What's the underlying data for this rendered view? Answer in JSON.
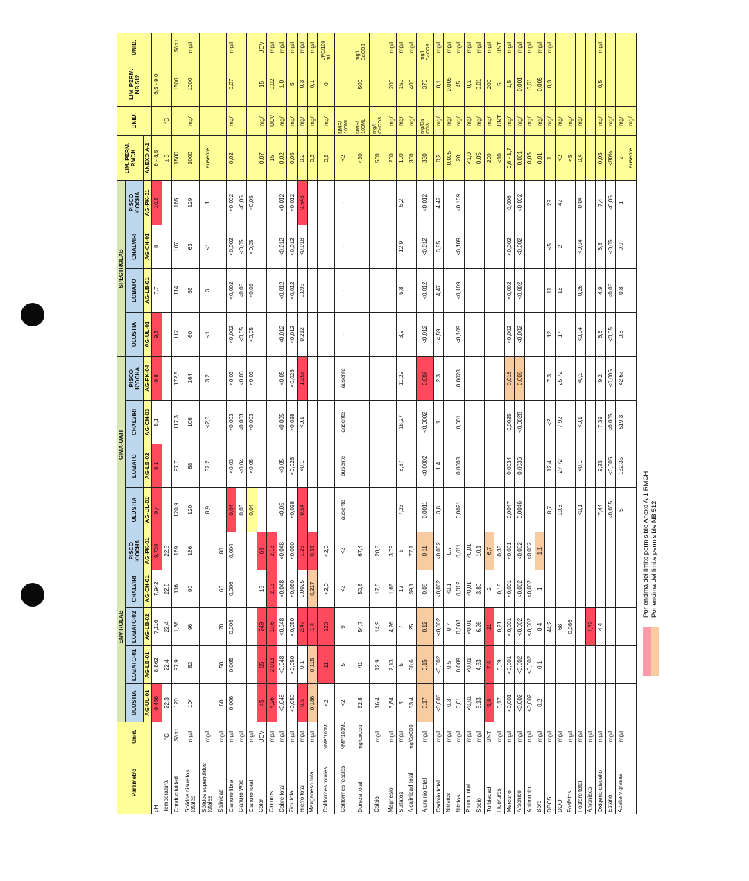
{
  "colors": {
    "red": "#ff4a5e",
    "orange": "#f8cba0",
    "yellow": "#ffff99",
    "green": "#d8e8b0",
    "blue": "#bdd7ee",
    "pink": "#ff9aa6"
  },
  "header": {
    "parametro": "Parámetro",
    "unid": "Unid.",
    "envirolab": "ENVIROLAB",
    "cima": "CIMA-UATF",
    "spectrolab": "SPECTROLAB",
    "lim_rmch": "LIM. PERM. RMCH",
    "unid2": "UNID.",
    "lim_nb": "LIM. PERM. NB 512",
    "unid3": "UNID.",
    "envirolab_sites": [
      "ULUSTIA",
      "LOBATO-01",
      "LOBATO-02",
      "CHALVIRI",
      "PISCO K'OCHA"
    ],
    "cima_sites": [
      "ULUSTIA",
      "LOBATO",
      "CHALVIRI",
      "PISCO K'OCHA"
    ],
    "spectrolab_sites": [
      "ULUSTIA",
      "LOBATO",
      "CHALVIRI",
      "PISCO K'OCHA"
    ],
    "codes": [
      "AG-UL-01",
      "AG-LB-01",
      "AG-LB-02",
      "AG-CH-01",
      "AG-PK-01",
      "AG-UL-01",
      "AG-LB-02",
      "AG-CH-03",
      "AG-PK-04",
      "AG-UL-01",
      "AG-LB-01",
      "AG-CH-01",
      "AG-PK-01",
      "ANEXO A-1"
    ]
  },
  "rows": [
    {
      "c": [
        "pH",
        "",
        "9,456",
        "8,862",
        "7,116",
        "7,942",
        "9,739",
        "9,4",
        "9,1",
        "8,1",
        "9,8",
        "9,3",
        "7,7",
        "8",
        "10,8",
        "6 - 8,5",
        "",
        "6,5 - 9,0",
        ""
      ],
      "hl": {
        "2": "r",
        "6": "r",
        "7": "r",
        "8": "r",
        "10": "r",
        "11": "r",
        "14": "r"
      }
    },
    {
      "c": [
        "Temperatura",
        "°C",
        "22,3",
        "22,4",
        "22,4",
        "22,6",
        "22,8",
        "",
        "",
        "",
        "",
        "",
        "",
        "",
        "",
        "± 3",
        "°C",
        "",
        ""
      ]
    },
    {
      "c": [
        "Conductividad",
        "μS/cm",
        "120",
        "97,9",
        "1,38",
        "116",
        "169",
        "120,9",
        "97,7",
        "117,3",
        "172,5",
        "112",
        "114",
        "107",
        "165",
        "1500",
        "",
        "1500",
        "μS/cm"
      ]
    },
    {
      "c": [
        "Solidos disueltos totales",
        "mg/l",
        "104",
        "82",
        "96",
        "90",
        "166",
        "120",
        "88",
        "106",
        "164",
        "60",
        "65",
        "63",
        "129",
        "1000",
        "mg/l",
        "1000",
        "mg/l"
      ]
    },
    {
      "c": [
        "Sólidos supendidos totales",
        "mg/l",
        "",
        "",
        "",
        "",
        "",
        "8,9",
        "32,2",
        "<2,0",
        "3,2",
        "<1",
        "3",
        "<1",
        "1",
        "ausente",
        "",
        "",
        ""
      ]
    },
    {
      "c": [
        "Salinidad",
        "mg/l",
        "60",
        "50",
        "70",
        "60",
        "80",
        "",
        "",
        "",
        "",
        "",
        "",
        "",
        "",
        "",
        "",
        "",
        ""
      ]
    },
    {
      "c": [
        "Cianuro libre",
        "mg/l",
        "0,006",
        "0,005",
        "0,006",
        "0,006",
        "0,004",
        "0,04",
        "<0,03",
        "<0,003",
        "<0,03",
        "<0,002",
        "<0,002",
        "<0,002",
        "<0,002",
        "0,02",
        "mg/l",
        "0,07",
        "mg/l"
      ],
      "hl": {
        "7": "r"
      }
    },
    {
      "c": [
        "Cianuro Wad",
        "mg/l",
        "",
        "",
        "",
        "",
        "",
        "0,03",
        "<0,04",
        "<0,003",
        "<0,03",
        "<0,05",
        "<0,05",
        "<0,05",
        "<0,05",
        "",
        "",
        "",
        ""
      ]
    },
    {
      "c": [
        "Cianuro total",
        "mg/l",
        "",
        "",
        "",
        "",
        "",
        "0,04",
        "<0,05",
        "<0,003",
        "<0,03",
        "<0,05",
        "<0,05",
        "<0,05",
        "<0,05",
        "",
        "",
        "",
        ""
      ],
      "hl": {
        "7": "y"
      }
    },
    {
      "c": [
        "Color",
        "UCV",
        "45",
        "65",
        "249",
        "15",
        "69",
        "",
        "",
        "",
        "",
        "",
        "",
        "",
        "",
        "0,07",
        "mg/l",
        "15",
        "UCV"
      ],
      "hl": {
        "2": "r",
        "3": "r",
        "4": "r",
        "6": "r"
      }
    },
    {
      "c": [
        "Cloruros",
        "mg/l",
        "4,26",
        "2,013",
        "10,6",
        "2,13",
        "2,13",
        "",
        "",
        "",
        "",
        "",
        "",
        "",
        "",
        "15",
        "UCV",
        "0,02",
        "mg/l"
      ],
      "hl": {
        "2": "r",
        "3": "r",
        "4": "r",
        "5": "r",
        "6": "r"
      }
    },
    {
      "c": [
        "Cobre total",
        "mg/l",
        "<0,048",
        "<0,048",
        "<0,048",
        "<0,048",
        "<0,048",
        "<0,05",
        "<0,05",
        "<0,005",
        "<0,05",
        "<0,012",
        "<0,012",
        "<0,012",
        "<0,012",
        "0,02",
        "mg/l",
        "1,0",
        "mg/l"
      ]
    },
    {
      "c": [
        "Zinc total",
        "mg/l",
        "<0,050",
        "<0,050",
        "<0,050",
        "<0,050",
        "<0,050",
        "<0,028",
        "<0,028",
        "<0,028",
        "<0,028",
        "<0,012",
        "<0,012",
        "<0,012",
        "<0,012",
        "0,05",
        "mg/l",
        "5",
        "mg/l"
      ]
    },
    {
      "c": [
        "Hierro total",
        "mg/l",
        "0,5",
        "0,1",
        "2,47",
        "0,0025",
        "1,26",
        "0,54",
        "<0,1",
        "<0,1",
        "1,358",
        "0,212",
        "0,095",
        "<0,018",
        "0,643",
        "0,2",
        "mg/l",
        "0,3",
        "mg/l"
      ],
      "hl": {
        "2": "r",
        "4": "r",
        "6": "r",
        "7": "r",
        "10": "r",
        "14": "r"
      }
    },
    {
      "c": [
        "Manganeso total",
        "mg/l",
        "0,186",
        "0,115",
        "1,4",
        "0,217",
        "0,35",
        "",
        "",
        "",
        "",
        "",
        "",
        "",
        "",
        "0,3",
        "mg/l",
        "0,1",
        "mg/l"
      ],
      "hl": {
        "2": "o",
        "3": "o",
        "4": "r",
        "5": "o",
        "6": "r"
      }
    },
    {
      "c": [
        "Coliformes totales",
        "NMP/100ML",
        "<2",
        "11",
        "220",
        "<2,0",
        "<2,0",
        "",
        "",
        "",
        "",
        "",
        "",
        "",
        "",
        "0,5",
        "mg/l",
        "0",
        "UFC/100 ml"
      ],
      "hl": {
        "3": "r",
        "4": "r"
      }
    },
    {
      "c": [
        "Coliformes fecales",
        "NMP/100ML",
        "<2",
        "5",
        "9",
        "<2",
        "<2",
        "ausente",
        "ausente",
        "ausente",
        "ausente",
        "-",
        "-",
        "-",
        "-",
        "<2",
        "NMP/ 100ML",
        "",
        ""
      ]
    },
    {
      "c": [
        "Dureza total",
        "mg/CaCO3",
        "52,8",
        "41",
        "54,7",
        "50,8",
        "67,4",
        "",
        "",
        "",
        "",
        "",
        "",
        "",
        "",
        "<50",
        "NMP/ 100ML",
        "500",
        "mg/l CaCO3"
      ]
    },
    {
      "c": [
        "Calcio",
        "mg/l",
        "16,4",
        "12,9",
        "14,9",
        "17,6",
        "20,8",
        "",
        "",
        "",
        "",
        "",
        "",
        "",
        "",
        "500",
        "mg/l CaCO3",
        "",
        ""
      ]
    },
    {
      "c": [
        "Magnesio",
        "mg/l",
        "3,84",
        "2,13",
        "4,26",
        "1,65",
        "3,79",
        "",
        "",
        "",
        "",
        "",
        "",
        "",
        "",
        "200",
        "mg/l",
        "200",
        "mg/l"
      ]
    },
    {
      "c": [
        "Sulfatos",
        "mg/l",
        "4",
        "5",
        "7",
        "12",
        "5",
        "7,23",
        "8,87",
        "18,27",
        "11,29",
        "3,9",
        "5,8",
        "12,9",
        "5,2",
        "100",
        "mg/l",
        "150",
        "mg/l"
      ]
    },
    {
      "c": [
        "Alcalinidad total",
        "mg/CaCO3",
        "53,4",
        "38,6",
        "25",
        "39,1",
        "77,1",
        "",
        "",
        "",
        "",
        "",
        "",
        "",
        "",
        "300",
        "mg/l",
        "400",
        "mg/l"
      ]
    },
    {
      "c": [
        "Aluminio total",
        "mg/l",
        "0,17",
        "0,15",
        "0,12",
        "0,08",
        "0,11",
        "0,0011",
        "<0,0002",
        "<0,0002",
        "0,007",
        "<0,012",
        "<0,012",
        "<0,012",
        "<0,012",
        "350",
        "mg/Ca CO3",
        "370",
        "mg/l CaCO3"
      ],
      "hl": {
        "2": "o",
        "3": "o",
        "4": "o",
        "6": "o",
        "10": "r"
      }
    },
    {
      "c": [
        "Cadmio total",
        "mg/l",
        "<0,003",
        "<0,002",
        "<0,002",
        "<0,002",
        "<0,002",
        "3,8",
        "1,4",
        "1",
        "2,3",
        "4,59",
        "4,47",
        "3,85",
        "4,47",
        "0,2",
        "mg/l",
        "0,1",
        "mg/l"
      ]
    },
    {
      "c": [
        "Nitratos",
        "mg/l",
        "0,3",
        "0,5",
        "0,7",
        "<0,1",
        "0,7",
        "",
        "",
        "",
        "",
        "",
        "",
        "",
        "",
        "0,005",
        "mg/l",
        "0,005",
        "mg/l"
      ]
    },
    {
      "c": [
        "Nitritos",
        "mg/l",
        "0,01",
        "0,009",
        "0,008",
        "0,012",
        "0,011",
        "0,0021",
        "0,0008",
        "0,001",
        "0,0028",
        "<0,109",
        "<0,109",
        "<0,109",
        "<0,109",
        "20",
        "mg/l",
        "45",
        "mg/l"
      ]
    },
    {
      "c": [
        "Plomo total",
        "mg/l",
        "<0,01",
        "<0,01",
        "<0,01",
        "<0,01",
        "<0,01",
        "",
        "",
        "",
        "",
        "",
        "",
        "",
        "",
        "<1,0",
        "mg/l",
        "0,1",
        "mg/l"
      ]
    },
    {
      "c": [
        "Sodio",
        "mg/l",
        "5,13",
        "4,33",
        "6,26",
        "3,89",
        "10,1",
        "",
        "",
        "",
        "",
        "",
        "",
        "",
        "",
        "0,05",
        "mg/l",
        "0,01",
        "mg/l"
      ]
    },
    {
      "c": [
        "Turbiedad",
        "UNT",
        "5,9",
        "7,4",
        "21",
        "2",
        "6,7",
        "",
        "",
        "",
        "",
        "",
        "",
        "",
        "",
        "200",
        "mg/l",
        "200",
        "mg/l"
      ],
      "hl": {
        "2": "r",
        "3": "r",
        "4": "r",
        "6": "o"
      }
    },
    {
      "c": [
        "Fluoruros",
        "mg/l",
        "0,17",
        "0,09",
        "0,21",
        "0,15",
        "0,35",
        "",
        "",
        "",
        "",
        "",
        "",
        "",
        "",
        "<10",
        "UNT",
        "5",
        "UNT"
      ]
    },
    {
      "c": [
        "Mercurio",
        "mg/l",
        "<0,001",
        "<0,001",
        "<0,001",
        "<0,001",
        "<0,001",
        "0,0047",
        "0,0034",
        "0,0025",
        "0,016",
        "<0,002",
        "<0,002",
        "<0,002",
        "0,006",
        "0,6 - 1,7",
        "mg/l",
        "1,5",
        "mg/l"
      ],
      "hl": {
        "10": "o"
      }
    },
    {
      "c": [
        "Arsenico",
        "mg/l",
        "<0,002",
        "<0,002",
        "<0,002",
        "<0,002",
        "<0,002",
        "0,0046",
        "0,0036",
        "<0,0028",
        "0,008",
        "<0,002",
        "<0,002",
        "<0,002",
        "<0,002",
        "0,001",
        "mg/l",
        "0,001",
        "mg/l"
      ],
      "hl": {
        "10": "o"
      }
    },
    {
      "c": [
        "Antimonio",
        "mg/l",
        "<0,002",
        "<0,002",
        "<0,002",
        "<0,002",
        "<0,002",
        "",
        "",
        "",
        "",
        "",
        "",
        "",
        "",
        "0,05",
        "mg/l",
        "0,01",
        "mg/l"
      ]
    },
    {
      "c": [
        "Boro",
        "mg/l",
        "0,2",
        "0,1",
        "0,4",
        "1",
        "1,1",
        "",
        "",
        "",
        "",
        "",
        "",
        "",
        "",
        "0,01",
        "mg/l",
        "0,005",
        "mg/l"
      ],
      "hl": {
        "6": "o"
      }
    },
    {
      "c": [
        "DBO5",
        "mg/l",
        "",
        "",
        "44,2",
        "",
        "",
        "8,7",
        "12,4",
        "<2",
        "7,3",
        "12",
        "11",
        "<5",
        "29",
        "1",
        "mg/l",
        "0,3",
        "mg/l"
      ]
    },
    {
      "c": [
        "DQO",
        "mg/l",
        "",
        "",
        "68",
        "",
        "",
        "19,8",
        "27,72",
        "7,92",
        "25,72",
        "17",
        "16",
        "2",
        "42",
        "<2",
        "mg/l",
        "",
        ""
      ]
    },
    {
      "c": [
        "Fosfatos",
        "mg/l",
        "",
        "",
        "0,086",
        "",
        "",
        "",
        "",
        "",
        "",
        "",
        "",
        "",
        "",
        "<5",
        "mg/l",
        "",
        ""
      ]
    },
    {
      "c": [
        "Fosforo total",
        "mg/l",
        "",
        "",
        "",
        "",
        "",
        "<0,1",
        "<0,1",
        "<0,1",
        "<0,1",
        "<0,04",
        "0,26",
        "<0,04",
        "0,04",
        "0,4",
        "mg/l",
        "",
        ""
      ]
    },
    {
      "c": [
        "Amoniaco",
        "mg/l",
        "",
        "",
        "1,32",
        "",
        "",
        "",
        "",
        "",
        "",
        "",
        "",
        "",
        "",
        "",
        "",
        "",
        ""
      ],
      "hl": {
        "4": "r"
      }
    },
    {
      "c": [
        "Oxigeno disuelto",
        "mg/l",
        "",
        "",
        "4,4",
        "",
        "",
        "7,44",
        "9,23",
        "7,39",
        "9,2",
        "6,6",
        "4,9",
        "6,8",
        "7,4",
        "0,05",
        "mg/l",
        "0,5",
        "mg/l"
      ]
    },
    {
      "c": [
        "Estaño",
        "mg/l",
        "",
        "",
        "",
        "",
        "",
        "<0,005",
        "<0,005",
        "<0,005",
        "<0,005",
        "<0,05",
        "<0,05",
        "<0,05",
        "<0,05",
        "<80%",
        "mg/l",
        "",
        ""
      ]
    },
    {
      "c": [
        "Aceite y grasas",
        "mg/l",
        "",
        "",
        "",
        "",
        "",
        "5",
        "132,35",
        "519,3",
        "42,67",
        "0,8",
        "0,8",
        "0,9",
        "1",
        "2",
        "mg/l",
        "",
        ""
      ]
    },
    {
      "c": [
        "",
        "",
        "",
        "",
        "",
        "",
        "",
        "",
        "",
        "",
        "",
        "",
        "",
        "",
        "",
        "ausente",
        "mg/l",
        "",
        ""
      ]
    }
  ],
  "notes": {
    "rmch": "Por encima del limite permisible Anexo A-1 RMCH",
    "nb": "Por encima del limite permisible NB 512"
  }
}
